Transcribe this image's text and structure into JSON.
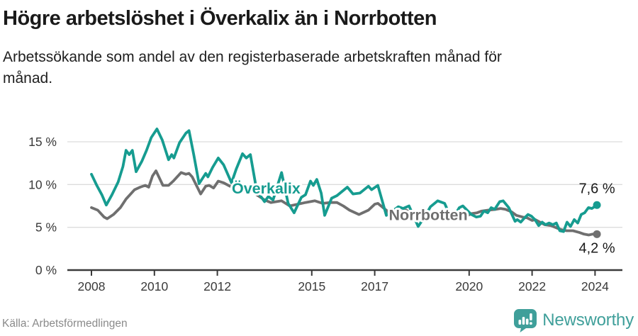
{
  "header": {
    "title": "Högre arbetslöshet i Överkalix än i Norrbotten",
    "subtitle_lines": [
      "Arbetssökande som andel av den registerbaserade arbetskraften månad för",
      "månad."
    ]
  },
  "footer": {
    "source": "Källa: Arbetsförmedlingen",
    "brand": "Newsworthy"
  },
  "colors": {
    "overkalix": "#169c90",
    "norrbotten": "#6f6f6f",
    "axis": "#3a3a3a",
    "grid": "#dcdcdc",
    "text": "#1a1a1a",
    "source_text": "#8a8a8a",
    "brand_teal": "#3f9f9a"
  },
  "chart_data": {
    "type": "line",
    "x_unit": "decimal_year",
    "x_range": [
      2008.0,
      2024.1
    ],
    "ylim": [
      0,
      17
    ],
    "grid": "horizontal",
    "y_ticks": [
      {
        "value": 0,
        "label": "0 %"
      },
      {
        "value": 5,
        "label": "5 %"
      },
      {
        "value": 10,
        "label": "10 %"
      },
      {
        "value": 15,
        "label": "15 %"
      }
    ],
    "x_ticks": [
      {
        "value": 2008,
        "label": "2008"
      },
      {
        "value": 2010,
        "label": "2010"
      },
      {
        "value": 2012,
        "label": "2012"
      },
      {
        "value": 2015,
        "label": "2015"
      },
      {
        "value": 2017,
        "label": "2017"
      },
      {
        "value": 2020,
        "label": "2020"
      },
      {
        "value": 2022,
        "label": "2022"
      },
      {
        "value": 2024,
        "label": "2024"
      }
    ],
    "series": [
      {
        "name": "Överkalix",
        "slug": "overkalix",
        "color": "#169c90",
        "end_label": "7,6 %",
        "end_value": 7.6,
        "end_label_above": true,
        "label_pos": {
          "x": 2013.55,
          "y": 8.95
        },
        "points": [
          [
            2008.0,
            11.2
          ],
          [
            2008.17,
            9.9
          ],
          [
            2008.33,
            8.8
          ],
          [
            2008.47,
            7.6
          ],
          [
            2008.65,
            8.8
          ],
          [
            2008.85,
            10.3
          ],
          [
            2009.0,
            12.1
          ],
          [
            2009.1,
            14.0
          ],
          [
            2009.2,
            13.5
          ],
          [
            2009.3,
            14.0
          ],
          [
            2009.42,
            11.5
          ],
          [
            2009.6,
            12.7
          ],
          [
            2009.75,
            14.0
          ],
          [
            2009.9,
            15.5
          ],
          [
            2010.08,
            16.5
          ],
          [
            2010.25,
            15.2
          ],
          [
            2010.45,
            12.9
          ],
          [
            2010.55,
            13.5
          ],
          [
            2010.62,
            13.1
          ],
          [
            2010.8,
            14.9
          ],
          [
            2011.0,
            16.0
          ],
          [
            2011.1,
            16.3
          ],
          [
            2011.25,
            13.5
          ],
          [
            2011.42,
            10.1
          ],
          [
            2011.63,
            11.3
          ],
          [
            2011.7,
            10.9
          ],
          [
            2011.85,
            12.0
          ],
          [
            2012.03,
            13.1
          ],
          [
            2012.2,
            12.3
          ],
          [
            2012.45,
            10.2
          ],
          [
            2012.6,
            11.8
          ],
          [
            2012.8,
            13.6
          ],
          [
            2012.92,
            13.1
          ],
          [
            2013.05,
            13.5
          ],
          [
            2013.25,
            9.3
          ],
          [
            2013.5,
            8.0
          ],
          [
            2013.62,
            8.6
          ],
          [
            2013.77,
            8.2
          ],
          [
            2014.04,
            11.4
          ],
          [
            2014.25,
            7.8
          ],
          [
            2014.44,
            6.7
          ],
          [
            2014.67,
            8.5
          ],
          [
            2014.8,
            8.8
          ],
          [
            2014.96,
            10.4
          ],
          [
            2015.05,
            9.9
          ],
          [
            2015.16,
            10.6
          ],
          [
            2015.3,
            9.0
          ],
          [
            2015.41,
            6.4
          ],
          [
            2015.63,
            8.4
          ],
          [
            2015.8,
            8.7
          ],
          [
            2016.13,
            9.7
          ],
          [
            2016.31,
            8.9
          ],
          [
            2016.53,
            9.0
          ],
          [
            2016.8,
            9.8
          ],
          [
            2016.9,
            9.4
          ],
          [
            2017.1,
            9.9
          ],
          [
            2017.37,
            6.4
          ],
          [
            2017.6,
            7.0
          ],
          [
            2017.75,
            7.4
          ],
          [
            2017.9,
            7.2
          ],
          [
            2018.09,
            7.5
          ],
          [
            2018.38,
            5.1
          ],
          [
            2018.6,
            6.3
          ],
          [
            2018.77,
            7.4
          ],
          [
            2019.0,
            8.1
          ],
          [
            2019.22,
            7.8
          ],
          [
            2019.45,
            5.9
          ],
          [
            2019.69,
            7.3
          ],
          [
            2019.8,
            7.5
          ],
          [
            2019.96,
            6.9
          ],
          [
            2020.07,
            6.5
          ],
          [
            2020.23,
            6.2
          ],
          [
            2020.36,
            6.3
          ],
          [
            2020.47,
            6.9
          ],
          [
            2020.59,
            6.7
          ],
          [
            2020.7,
            7.3
          ],
          [
            2020.81,
            7.1
          ],
          [
            2020.97,
            8.0
          ],
          [
            2021.08,
            8.1
          ],
          [
            2021.26,
            7.3
          ],
          [
            2021.46,
            5.7
          ],
          [
            2021.53,
            5.9
          ],
          [
            2021.64,
            5.6
          ],
          [
            2021.76,
            6.1
          ],
          [
            2021.87,
            6.5
          ],
          [
            2021.98,
            6.3
          ],
          [
            2022.09,
            5.9
          ],
          [
            2022.21,
            5.2
          ],
          [
            2022.32,
            5.6
          ],
          [
            2022.43,
            5.3
          ],
          [
            2022.54,
            5.5
          ],
          [
            2022.66,
            5.3
          ],
          [
            2022.77,
            5.5
          ],
          [
            2022.88,
            4.6
          ],
          [
            2023.0,
            4.5
          ],
          [
            2023.11,
            5.6
          ],
          [
            2023.22,
            5.1
          ],
          [
            2023.34,
            5.9
          ],
          [
            2023.45,
            5.5
          ],
          [
            2023.56,
            6.5
          ],
          [
            2023.67,
            6.7
          ],
          [
            2023.79,
            7.3
          ],
          [
            2023.9,
            7.2
          ],
          [
            2024.06,
            7.6
          ]
        ]
      },
      {
        "name": "Norrbotten",
        "slug": "norrbotten",
        "color": "#6f6f6f",
        "end_label": "4,2 %",
        "end_value": 4.2,
        "end_label_above": false,
        "label_pos": {
          "x": 2018.7,
          "y": 5.85
        },
        "points": [
          [
            2008.0,
            7.3
          ],
          [
            2008.2,
            7.0
          ],
          [
            2008.4,
            6.2
          ],
          [
            2008.5,
            6.0
          ],
          [
            2008.7,
            6.5
          ],
          [
            2008.92,
            7.3
          ],
          [
            2009.1,
            8.3
          ],
          [
            2009.37,
            9.4
          ],
          [
            2009.55,
            9.7
          ],
          [
            2009.71,
            9.9
          ],
          [
            2009.82,
            9.7
          ],
          [
            2009.94,
            11.0
          ],
          [
            2010.05,
            11.6
          ],
          [
            2010.27,
            9.9
          ],
          [
            2010.45,
            9.9
          ],
          [
            2010.6,
            10.4
          ],
          [
            2010.85,
            11.4
          ],
          [
            2011.0,
            11.2
          ],
          [
            2011.1,
            11.3
          ],
          [
            2011.2,
            10.9
          ],
          [
            2011.47,
            8.9
          ],
          [
            2011.63,
            9.8
          ],
          [
            2011.74,
            9.9
          ],
          [
            2011.88,
            9.6
          ],
          [
            2012.03,
            10.4
          ],
          [
            2012.2,
            10.2
          ],
          [
            2012.4,
            9.8
          ],
          [
            2012.6,
            9.9
          ],
          [
            2012.72,
            10.0
          ],
          [
            2012.9,
            9.6
          ],
          [
            2013.05,
            9.4
          ],
          [
            2013.25,
            8.8
          ],
          [
            2013.5,
            8.2
          ],
          [
            2013.7,
            7.9
          ],
          [
            2014.04,
            8.1
          ],
          [
            2014.3,
            7.5
          ],
          [
            2014.55,
            7.7
          ],
          [
            2014.8,
            7.9
          ],
          [
            2015.1,
            8.1
          ],
          [
            2015.35,
            7.8
          ],
          [
            2015.6,
            7.9
          ],
          [
            2015.8,
            7.9
          ],
          [
            2016.0,
            7.5
          ],
          [
            2016.2,
            7.0
          ],
          [
            2016.5,
            6.5
          ],
          [
            2016.8,
            7.0
          ],
          [
            2017.0,
            7.7
          ],
          [
            2017.1,
            7.8
          ],
          [
            2017.3,
            7.2
          ],
          [
            2017.5,
            6.6
          ],
          [
            2017.75,
            6.7
          ],
          [
            2018.0,
            7.0
          ],
          [
            2018.4,
            6.0
          ],
          [
            2018.7,
            6.2
          ],
          [
            2019.0,
            6.6
          ],
          [
            2019.3,
            6.3
          ],
          [
            2019.55,
            5.9
          ],
          [
            2019.8,
            6.1
          ],
          [
            2020.07,
            6.6
          ],
          [
            2020.25,
            6.7
          ],
          [
            2020.4,
            6.9
          ],
          [
            2020.6,
            7.0
          ],
          [
            2020.85,
            7.1
          ],
          [
            2021.0,
            7.2
          ],
          [
            2021.15,
            7.1
          ],
          [
            2021.35,
            6.8
          ],
          [
            2021.5,
            6.4
          ],
          [
            2021.7,
            6.2
          ],
          [
            2021.85,
            6.1
          ],
          [
            2022.0,
            5.8
          ],
          [
            2022.1,
            5.9
          ],
          [
            2022.25,
            5.6
          ],
          [
            2022.4,
            5.3
          ],
          [
            2022.6,
            5.2
          ],
          [
            2022.8,
            4.9
          ],
          [
            2022.95,
            4.7
          ],
          [
            2023.1,
            4.6
          ],
          [
            2023.3,
            4.6
          ],
          [
            2023.5,
            4.4
          ],
          [
            2023.65,
            4.2
          ],
          [
            2023.8,
            4.1
          ],
          [
            2023.92,
            4.2
          ],
          [
            2024.06,
            4.2
          ]
        ]
      }
    ]
  }
}
